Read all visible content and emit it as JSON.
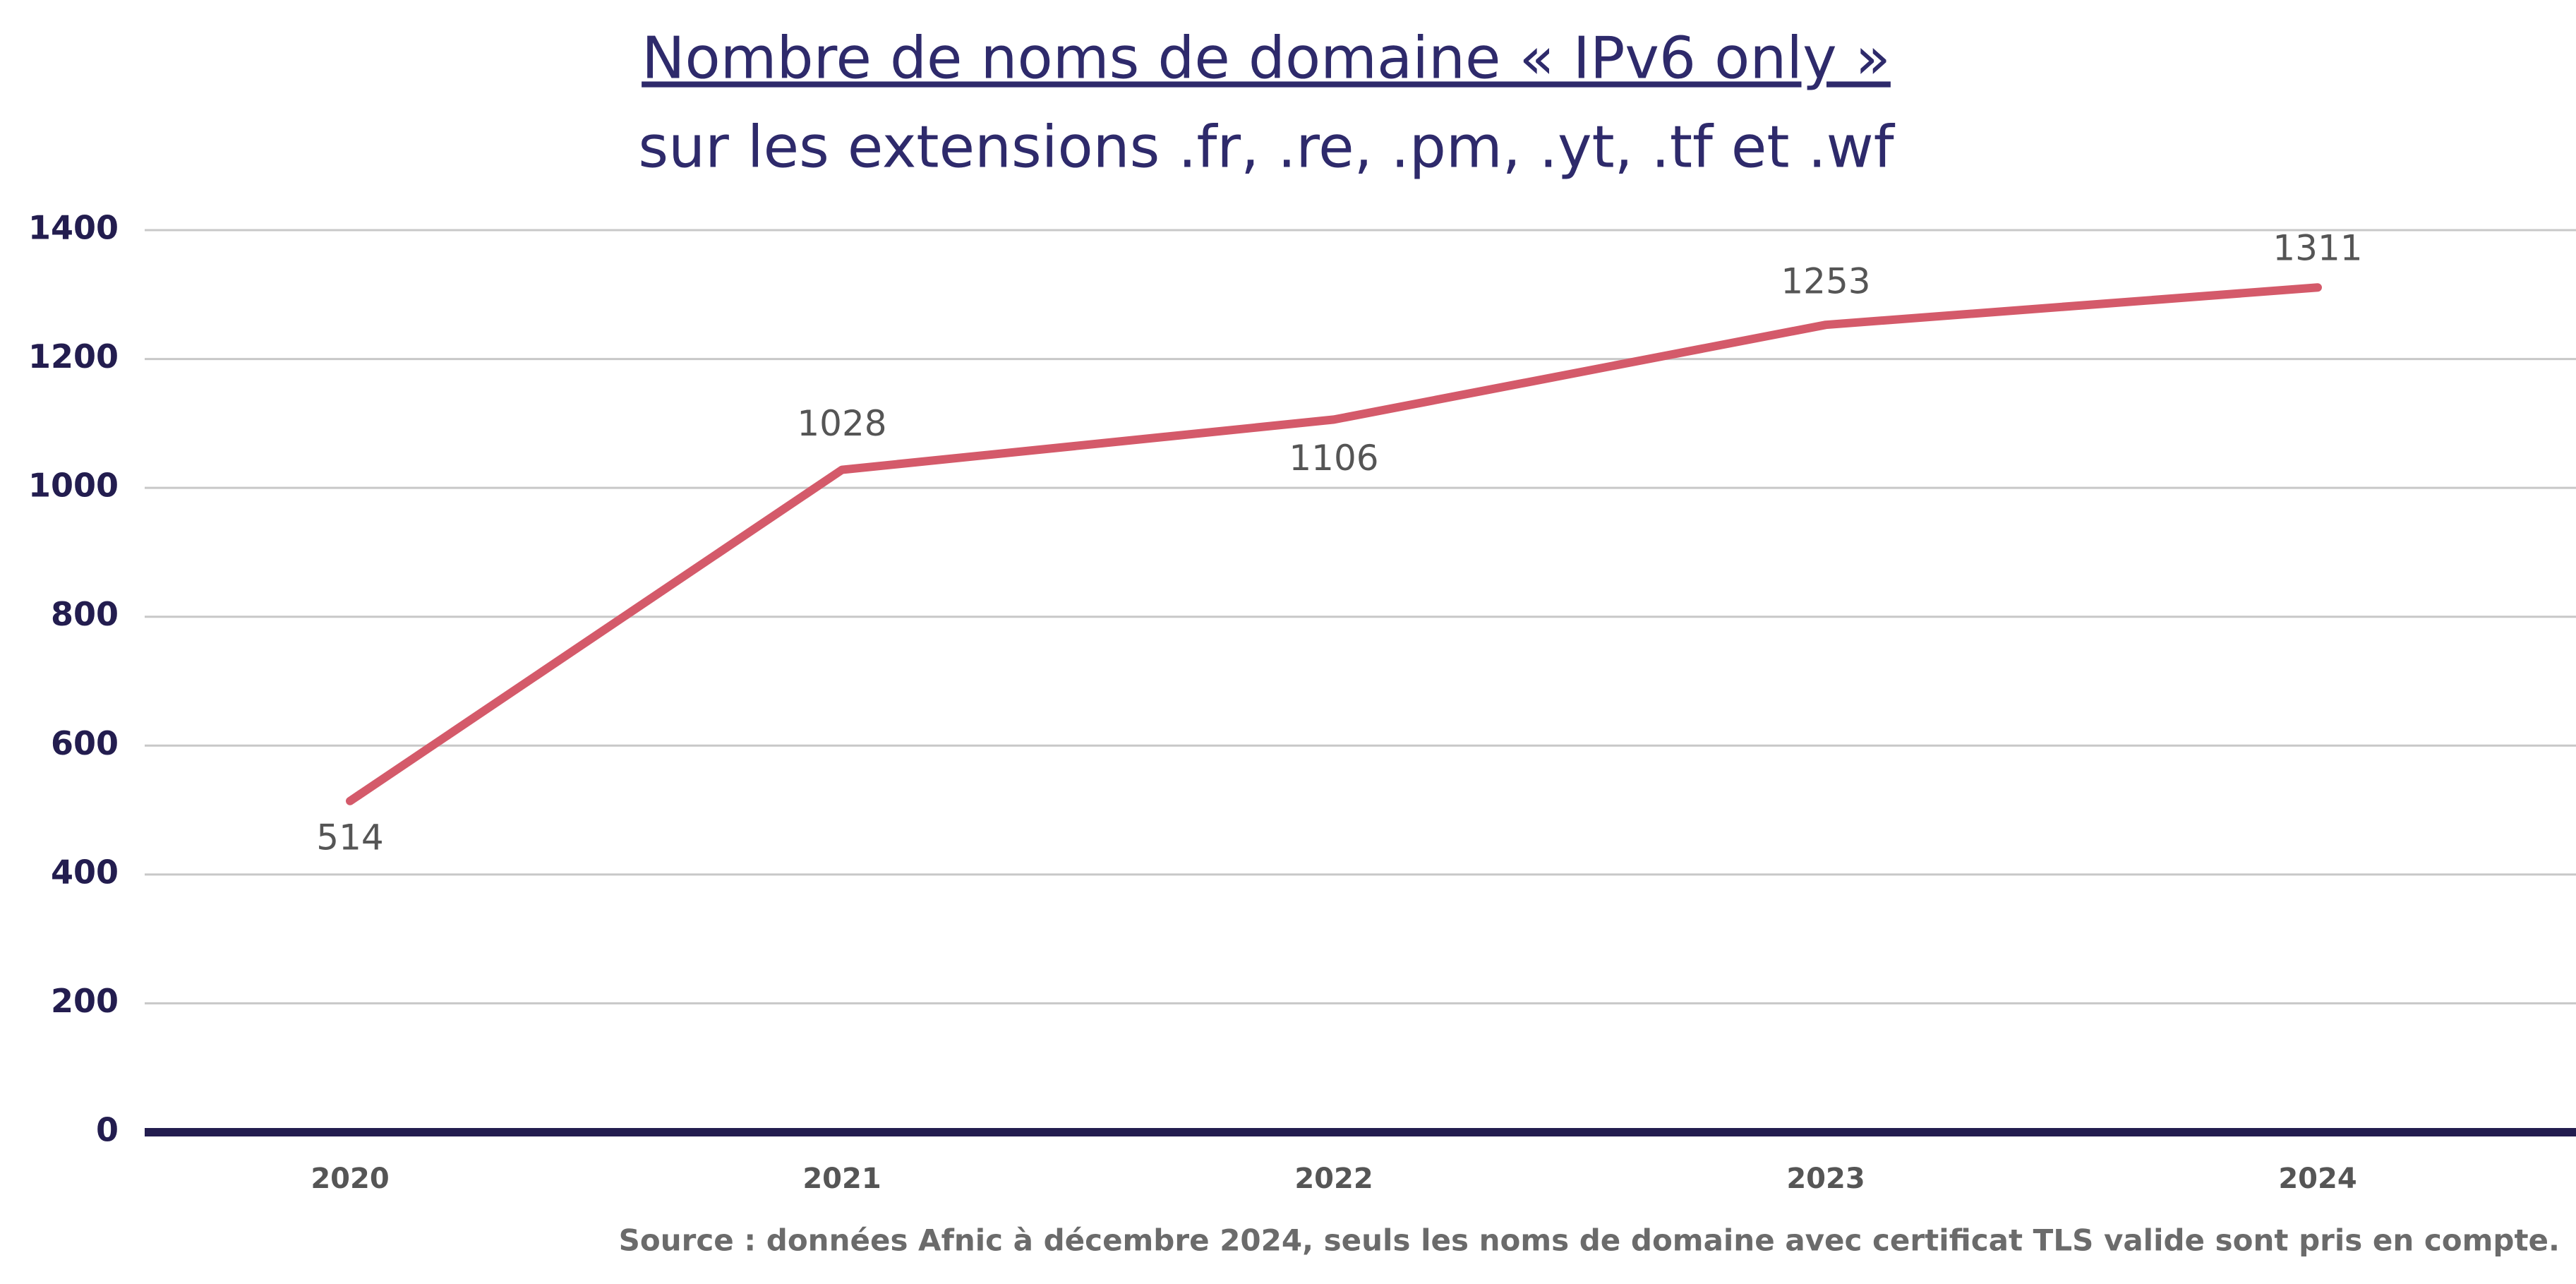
{
  "chart_data": {
    "type": "line",
    "title": "Nombre de noms de domaine « IPv6 only »",
    "subtitle": "sur les extensions .fr, .re, .pm, .yt, .tf et .wf",
    "categories": [
      "2020",
      "2021",
      "2022",
      "2023",
      "2024"
    ],
    "series": [
      {
        "name": "IPv6 only",
        "color": "#d45a6a",
        "values": [
          514,
          1028,
          1106,
          1253,
          1311
        ]
      }
    ],
    "ylim": [
      0,
      1400
    ],
    "yticks": [
      0,
      200,
      400,
      600,
      800,
      1000,
      1200,
      1400
    ],
    "grid": true,
    "source": "Source : données Afnic à décembre 2024, seuls les noms de domaine avec certificat TLS valide sont pris en compte."
  }
}
